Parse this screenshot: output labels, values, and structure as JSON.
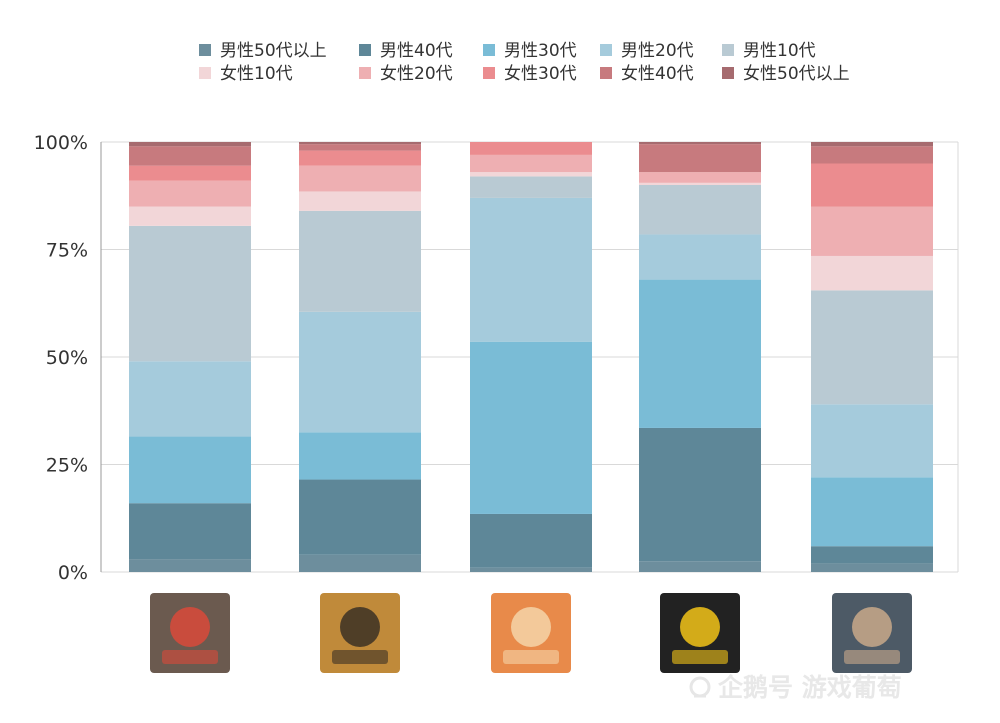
{
  "chart_data": {
    "type": "bar",
    "stacked": true,
    "stack_order": "bottom_to_top",
    "categories": [
      "game-icon-1",
      "game-icon-2",
      "game-icon-3",
      "game-icon-4",
      "game-icon-5"
    ],
    "ylim": [
      0,
      100
    ],
    "y_ticks": [
      "0%",
      "25%",
      "50%",
      "75%",
      "100%"
    ],
    "grid": true,
    "legend_position": "top",
    "series": [
      {
        "name": "男性50代以上",
        "color": "#6d8e9d",
        "values": [
          3,
          4,
          1,
          2.5,
          2
        ]
      },
      {
        "name": "男性40代",
        "color": "#5e8798",
        "values": [
          13,
          17.5,
          12.5,
          31,
          4
        ]
      },
      {
        "name": "男性30代",
        "color": "#7abcd6",
        "values": [
          15.5,
          11,
          40,
          34.5,
          16
        ]
      },
      {
        "name": "男性20代",
        "color": "#a5cbdc",
        "values": [
          17.5,
          28,
          33.5,
          10.5,
          17
        ]
      },
      {
        "name": "男性10代",
        "color": "#b9cad3",
        "values": [
          31.5,
          23.5,
          5,
          11.5,
          26.5
        ]
      },
      {
        "name": "女性10代",
        "color": "#f2d6d8",
        "values": [
          4.5,
          4.5,
          1,
          0.5,
          8
        ]
      },
      {
        "name": "女性20代",
        "color": "#eeafb2",
        "values": [
          6,
          6,
          4,
          2.5,
          11.5
        ]
      },
      {
        "name": "女性30代",
        "color": "#eb8c8f",
        "values": [
          3.5,
          3.5,
          3,
          0,
          10
        ]
      },
      {
        "name": "女性40代",
        "color": "#c77a7e",
        "values": [
          4.5,
          1.5,
          0,
          6.5,
          4
        ]
      },
      {
        "name": "女性50代以上",
        "color": "#a66b6f",
        "values": [
          1,
          0.5,
          0,
          0.5,
          1
        ]
      }
    ]
  },
  "watermark": {
    "logo": "penguin-icon",
    "text": "企鹅号 游戏葡萄"
  }
}
